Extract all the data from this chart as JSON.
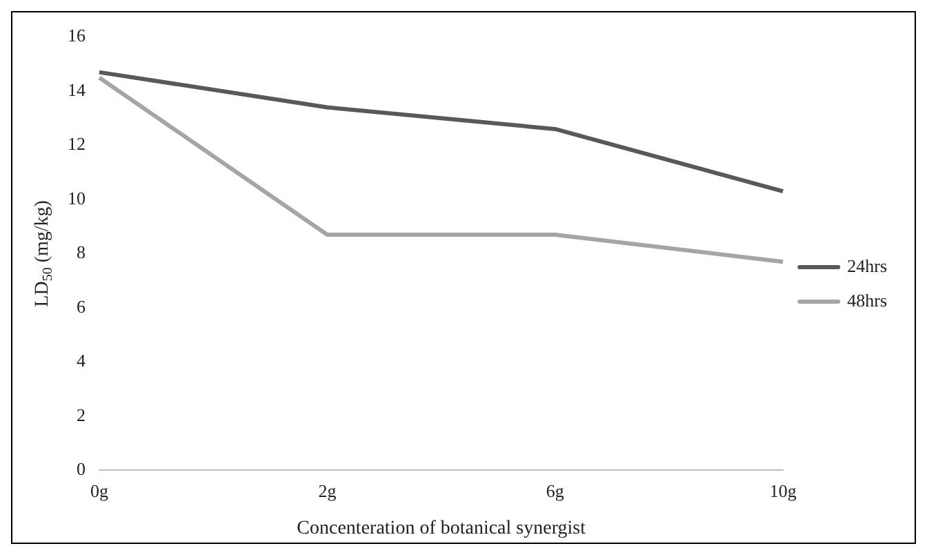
{
  "chart_data": {
    "type": "line",
    "xlabel": "Concenteration of botanical synergist",
    "ylabel": "LD$_{50}$ (mg/kg)",
    "categories": [
      "0g",
      "2g",
      "6g",
      "10g"
    ],
    "series": [
      {
        "name": "24hrs",
        "color": "#595959",
        "values": [
          14.7,
          13.4,
          12.6,
          10.3
        ]
      },
      {
        "name": "48hrs",
        "color": "#a5a5a5",
        "values": [
          14.5,
          8.7,
          8.7,
          7.7
        ]
      }
    ],
    "ylim": [
      0,
      16
    ],
    "yticks": [
      0,
      2,
      4,
      6,
      8,
      10,
      12,
      14,
      16
    ],
    "grid": false,
    "legend": "right",
    "marker": "none"
  }
}
